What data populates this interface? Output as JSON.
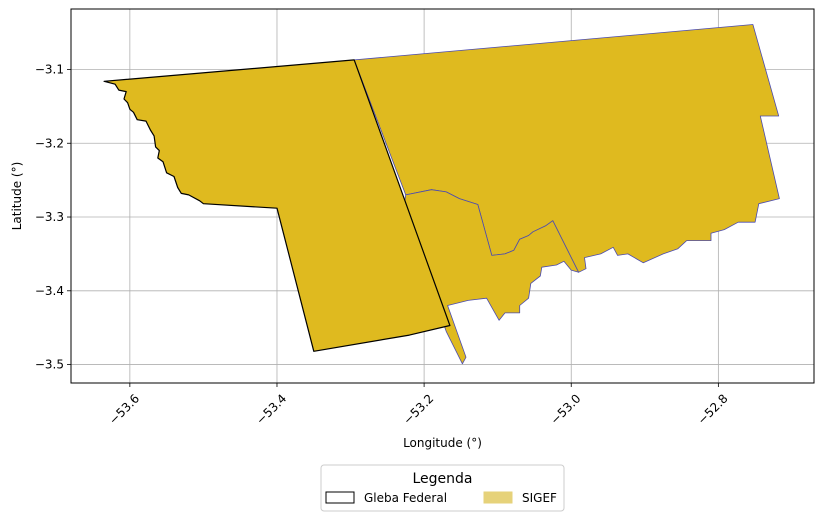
{
  "chart_data": {
    "type": "map",
    "xlabel": "Longitude (°)",
    "ylabel": "Latitude (°)",
    "xlim": [
      -53.68,
      -52.67
    ],
    "ylim": [
      -3.525,
      -3.018
    ],
    "x_ticks": [
      {
        "value": -53.6,
        "label": "−53.6"
      },
      {
        "value": -53.4,
        "label": "−53.4"
      },
      {
        "value": -53.2,
        "label": "−53.2"
      },
      {
        "value": -53.0,
        "label": "−53.0"
      },
      {
        "value": -52.8,
        "label": "−52.8"
      }
    ],
    "y_ticks": [
      {
        "value": -3.1,
        "label": "−3.1"
      },
      {
        "value": -3.2,
        "label": "−3.2"
      },
      {
        "value": -3.3,
        "label": "−3.3"
      },
      {
        "value": -3.4,
        "label": "−3.4"
      },
      {
        "value": -3.5,
        "label": "−3.5"
      }
    ],
    "grid": true,
    "legend": {
      "title": "Legenda",
      "placement": "bottom-center",
      "entries": [
        {
          "label": "Gleba Federal",
          "fill": "#ffffff",
          "edge": "#000000"
        },
        {
          "label": "SIGEF",
          "fill": "#e6d27a",
          "edge": "#e6d27a"
        }
      ]
    },
    "layers": [
      {
        "name": "SIGEF",
        "fill": "#dfba1f",
        "edge": "#4b4bb0",
        "polygons": [
          [
            [
              -53.295,
              -3.087
            ],
            [
              -52.753,
              -3.039
            ],
            [
              -52.718,
              -3.163
            ],
            [
              -52.743,
              -3.163
            ],
            [
              -52.717,
              -3.275
            ],
            [
              -52.745,
              -3.282
            ],
            [
              -52.75,
              -3.307
            ],
            [
              -52.773,
              -3.307
            ],
            [
              -52.792,
              -3.317
            ],
            [
              -52.81,
              -3.322
            ],
            [
              -52.81,
              -3.332
            ],
            [
              -52.843,
              -3.332
            ],
            [
              -52.855,
              -3.343
            ],
            [
              -52.875,
              -3.35
            ],
            [
              -52.902,
              -3.362
            ],
            [
              -52.923,
              -3.35
            ],
            [
              -52.937,
              -3.352
            ],
            [
              -52.943,
              -3.341
            ],
            [
              -52.96,
              -3.35
            ],
            [
              -52.982,
              -3.355
            ],
            [
              -52.98,
              -3.37
            ],
            [
              -52.99,
              -3.375
            ],
            [
              -53.025,
              -3.305
            ],
            [
              -53.035,
              -3.312
            ],
            [
              -53.052,
              -3.32
            ],
            [
              -53.058,
              -3.325
            ],
            [
              -53.07,
              -3.33
            ],
            [
              -53.078,
              -3.345
            ],
            [
              -53.09,
              -3.35
            ],
            [
              -53.108,
              -3.352
            ],
            [
              -53.127,
              -3.283
            ],
            [
              -53.152,
              -3.275
            ],
            [
              -53.17,
              -3.266
            ],
            [
              -53.19,
              -3.263
            ],
            [
              -53.225,
              -3.27
            ]
          ]
        ]
      },
      {
        "name": "SIGEF",
        "fill": "#dfba1f",
        "edge": "#4b4bb0",
        "polygons": [
          [
            [
              -53.225,
              -3.27
            ],
            [
              -53.19,
              -3.263
            ],
            [
              -53.17,
              -3.266
            ],
            [
              -53.152,
              -3.275
            ],
            [
              -53.127,
              -3.283
            ],
            [
              -53.108,
              -3.352
            ],
            [
              -53.09,
              -3.35
            ],
            [
              -53.078,
              -3.345
            ],
            [
              -53.07,
              -3.33
            ],
            [
              -53.058,
              -3.325
            ],
            [
              -53.052,
              -3.32
            ],
            [
              -53.035,
              -3.312
            ],
            [
              -53.025,
              -3.305
            ],
            [
              -52.99,
              -3.375
            ],
            [
              -53.0,
              -3.372
            ],
            [
              -53.01,
              -3.36
            ],
            [
              -53.02,
              -3.365
            ],
            [
              -53.04,
              -3.368
            ],
            [
              -53.042,
              -3.38
            ],
            [
              -53.055,
              -3.39
            ],
            [
              -53.058,
              -3.41
            ],
            [
              -53.07,
              -3.42
            ],
            [
              -53.07,
              -3.43
            ],
            [
              -53.09,
              -3.43
            ],
            [
              -53.098,
              -3.44
            ],
            [
              -53.115,
              -3.41
            ],
            [
              -53.14,
              -3.413
            ],
            [
              -53.168,
              -3.42
            ],
            [
              -53.143,
              -3.49
            ],
            [
              -53.148,
              -3.499
            ],
            [
              -53.17,
              -3.455
            ],
            [
              -53.228,
              -3.289
            ]
          ]
        ]
      },
      {
        "name": "Gleba Federal",
        "fill": "#dfba1f",
        "edge": "#000000",
        "polygons": [
          [
            [
              -53.635,
              -3.116
            ],
            [
              -53.295,
              -3.087
            ],
            [
              -53.165,
              -3.447
            ],
            [
              -53.22,
              -3.46
            ],
            [
              -53.35,
              -3.482
            ],
            [
              -53.4,
              -3.288
            ],
            [
              -53.5,
              -3.282
            ],
            [
              -53.505,
              -3.278
            ],
            [
              -53.52,
              -3.27
            ],
            [
              -53.53,
              -3.268
            ],
            [
              -53.535,
              -3.26
            ],
            [
              -53.54,
              -3.245
            ],
            [
              -53.55,
              -3.24
            ],
            [
              -53.555,
              -3.225
            ],
            [
              -53.562,
              -3.22
            ],
            [
              -53.56,
              -3.21
            ],
            [
              -53.565,
              -3.205
            ],
            [
              -53.567,
              -3.19
            ],
            [
              -53.572,
              -3.182
            ],
            [
              -53.578,
              -3.17
            ],
            [
              -53.59,
              -3.168
            ],
            [
              -53.595,
              -3.158
            ],
            [
              -53.6,
              -3.154
            ],
            [
              -53.603,
              -3.145
            ],
            [
              -53.608,
              -3.14
            ],
            [
              -53.605,
              -3.13
            ],
            [
              -53.615,
              -3.128
            ],
            [
              -53.62,
              -3.12
            ]
          ]
        ]
      }
    ]
  }
}
